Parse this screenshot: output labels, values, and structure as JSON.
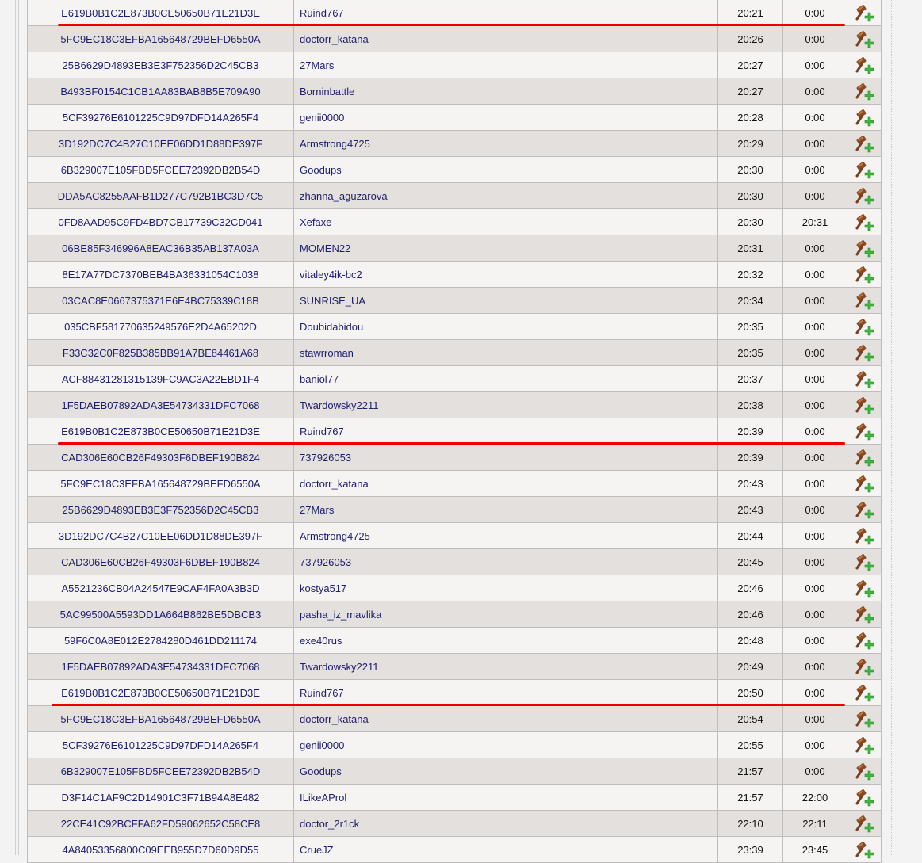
{
  "colors": {
    "annotation": "#ee0000",
    "link_text": "#1e1e6e"
  },
  "action_icon": "gavel-add-icon",
  "rows": [
    {
      "hash": "E619B0B1C2E873B0CE50650B71E21D3E",
      "name": "Ruind767",
      "start": "20:21",
      "end": "0:00",
      "highlighted": true
    },
    {
      "hash": "5FC9EC18C3EFBA165648729BEFD6550A",
      "name": "doctorr_katana",
      "start": "20:26",
      "end": "0:00"
    },
    {
      "hash": "25B6629D4893EB3E3F752356D2C45CB3",
      "name": "27Mars",
      "start": "20:27",
      "end": "0:00"
    },
    {
      "hash": "B493BF0154C1CB1AA83BAB8B5E709A90",
      "name": "Borninbattle",
      "start": "20:27",
      "end": "0:00"
    },
    {
      "hash": "5CF39276E6101225C9D97DFD14A265F4",
      "name": "genii0000",
      "start": "20:28",
      "end": "0:00"
    },
    {
      "hash": "3D192DC7C4B27C10EE06DD1D88DE397F",
      "name": "Armstrong4725",
      "start": "20:29",
      "end": "0:00"
    },
    {
      "hash": "6B329007E105FBD5FCEE72392DB2B54D",
      "name": "Goodups",
      "start": "20:30",
      "end": "0:00"
    },
    {
      "hash": "DDA5AC8255AAFB1D277C792B1BC3D7C5",
      "name": "zhanna_aguzarova",
      "start": "20:30",
      "end": "0:00"
    },
    {
      "hash": "0FD8AAD95C9FD4BD7CB17739C32CD041",
      "name": "Xefaxe",
      "start": "20:30",
      "end": "20:31"
    },
    {
      "hash": "06BE85F346996A8EAC36B35AB137A03A",
      "name": "MOMEN22",
      "start": "20:31",
      "end": "0:00"
    },
    {
      "hash": "8E17A77DC7370BEB4BA36331054C1038",
      "name": "vitaley4ik-bc2",
      "start": "20:32",
      "end": "0:00"
    },
    {
      "hash": "03CAC8E0667375371E6E4BC75339C18B",
      "name": "SUNRISE_UA",
      "start": "20:34",
      "end": "0:00"
    },
    {
      "hash": "035CBF581770635249576E2D4A65202D",
      "name": "Doubidabidou",
      "start": "20:35",
      "end": "0:00"
    },
    {
      "hash": "F33C32C0F825B385BB91A7BE84461A68",
      "name": "stawrroman",
      "start": "20:35",
      "end": "0:00"
    },
    {
      "hash": "ACF88431281315139FC9AC3A22EBD1F4",
      "name": "baniol77",
      "start": "20:37",
      "end": "0:00"
    },
    {
      "hash": "1F5DAEB07892ADA3E54734331DFC7068",
      "name": "Twardowsky2211",
      "start": "20:38",
      "end": "0:00"
    },
    {
      "hash": "E619B0B1C2E873B0CE50650B71E21D3E",
      "name": "Ruind767",
      "start": "20:39",
      "end": "0:00",
      "highlighted": true
    },
    {
      "hash": "CAD306E60CB26F49303F6DBEF190B824",
      "name": "737926053",
      "start": "20:39",
      "end": "0:00"
    },
    {
      "hash": "5FC9EC18C3EFBA165648729BEFD6550A",
      "name": "doctorr_katana",
      "start": "20:43",
      "end": "0:00"
    },
    {
      "hash": "25B6629D4893EB3E3F752356D2C45CB3",
      "name": "27Mars",
      "start": "20:43",
      "end": "0:00"
    },
    {
      "hash": "3D192DC7C4B27C10EE06DD1D88DE397F",
      "name": "Armstrong4725",
      "start": "20:44",
      "end": "0:00"
    },
    {
      "hash": "CAD306E60CB26F49303F6DBEF190B824",
      "name": "737926053",
      "start": "20:45",
      "end": "0:00"
    },
    {
      "hash": "A5521236CB04A24547E9CAF4FA0A3B3D",
      "name": "kostya517",
      "start": "20:46",
      "end": "0:00"
    },
    {
      "hash": "5AC99500A5593DD1A664B862BE5DBCB3",
      "name": "pasha_iz_mavlika",
      "start": "20:46",
      "end": "0:00"
    },
    {
      "hash": "59F6C0A8E012E2784280D461DD211174",
      "name": "exe40rus",
      "start": "20:48",
      "end": "0:00"
    },
    {
      "hash": "1F5DAEB07892ADA3E54734331DFC7068",
      "name": "Twardowsky2211",
      "start": "20:49",
      "end": "0:00"
    },
    {
      "hash": "E619B0B1C2E873B0CE50650B71E21D3E",
      "name": "Ruind767",
      "start": "20:50",
      "end": "0:00",
      "highlighted": true
    },
    {
      "hash": "5FC9EC18C3EFBA165648729BEFD6550A",
      "name": "doctorr_katana",
      "start": "20:54",
      "end": "0:00"
    },
    {
      "hash": "5CF39276E6101225C9D97DFD14A265F4",
      "name": "genii0000",
      "start": "20:55",
      "end": "0:00"
    },
    {
      "hash": "6B329007E105FBD5FCEE72392DB2B54D",
      "name": "Goodups",
      "start": "21:57",
      "end": "0:00"
    },
    {
      "hash": "D3F14C1AF9C2D14901C3F71B94A8E482",
      "name": "ILikeAProl",
      "start": "21:57",
      "end": "22:00"
    },
    {
      "hash": "22CE41C92BCFFA62FD59062652C58CE8",
      "name": "doctor_2r1ck",
      "start": "22:10",
      "end": "22:11"
    },
    {
      "hash": "4A84053356800C09EEB955D7D60D9D55",
      "name": "CrueJZ",
      "start": "23:39",
      "end": "23:45"
    }
  ]
}
